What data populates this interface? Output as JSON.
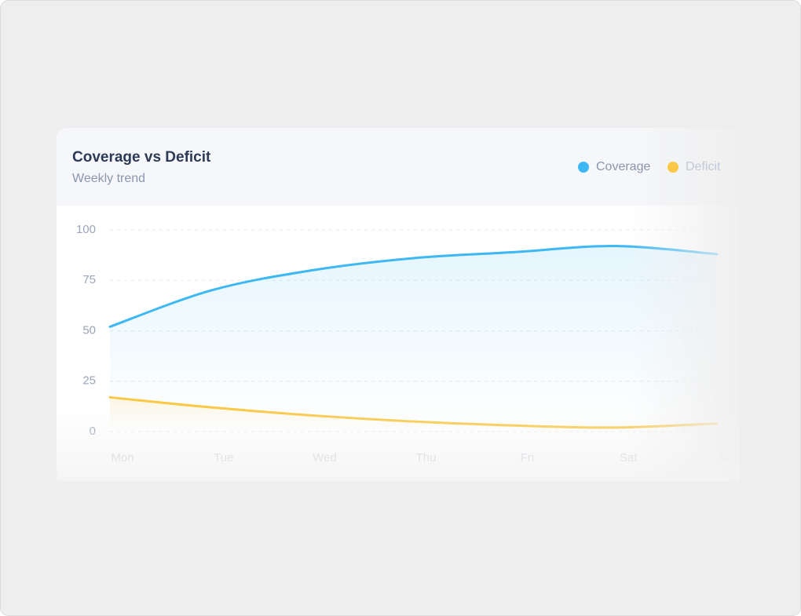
{
  "chart_data": {
    "type": "area",
    "title": "Coverage vs Deficit",
    "subtitle": "Weekly trend",
    "categories": [
      "Mon",
      "Tue",
      "Wed",
      "Thu",
      "Fri",
      "Sat",
      "Sun"
    ],
    "series": [
      {
        "name": "Coverage",
        "color": "#3db8f5",
        "values": [
          52,
          70,
          80,
          86,
          89,
          92,
          88
        ]
      },
      {
        "name": "Deficit",
        "color": "#f9c846",
        "values": [
          17,
          12,
          8,
          5,
          3,
          2,
          4
        ]
      }
    ],
    "ylim": [
      0,
      100
    ],
    "yticks": [
      0,
      25,
      50,
      75,
      100
    ],
    "grid": true,
    "legend": "top-right"
  }
}
